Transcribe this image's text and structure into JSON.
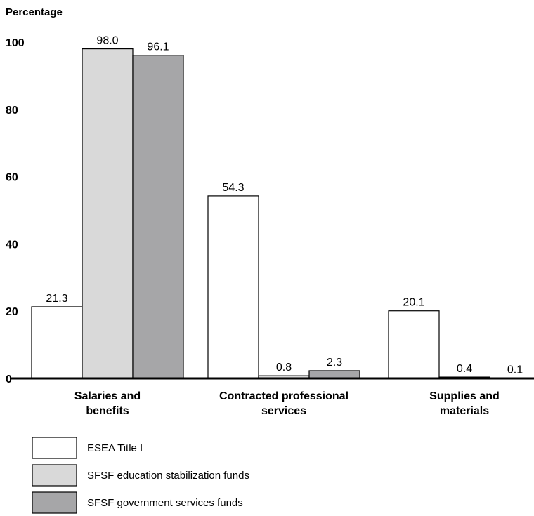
{
  "chart_data": {
    "type": "bar",
    "ylabel": "Percentage",
    "xlabel": "",
    "ylim": [
      0,
      100
    ],
    "yticks": [
      "0",
      "20",
      "40",
      "60",
      "80",
      "100"
    ],
    "categories": [
      [
        "Salaries and",
        "benefits"
      ],
      [
        "Contracted professional",
        "services"
      ],
      [
        "Supplies and",
        "materials"
      ]
    ],
    "series": [
      {
        "name": "ESEA Title I",
        "color": "#ffffff",
        "values": [
          21.3,
          54.3,
          20.1
        ],
        "labels": [
          "21.3",
          "54.3",
          "20.1"
        ]
      },
      {
        "name": "SFSF education stabilization funds",
        "color": "#d9d9d9",
        "values": [
          98.0,
          0.8,
          0.4
        ],
        "labels": [
          "98.0",
          "0.8",
          "0.4"
        ]
      },
      {
        "name": "SFSF government services funds",
        "color": "#a6a6a8",
        "values": [
          96.1,
          2.3,
          0.1
        ],
        "labels": [
          "96.1",
          "2.3",
          "0.1"
        ]
      }
    ],
    "grid": false,
    "legend": "bottom-left"
  }
}
